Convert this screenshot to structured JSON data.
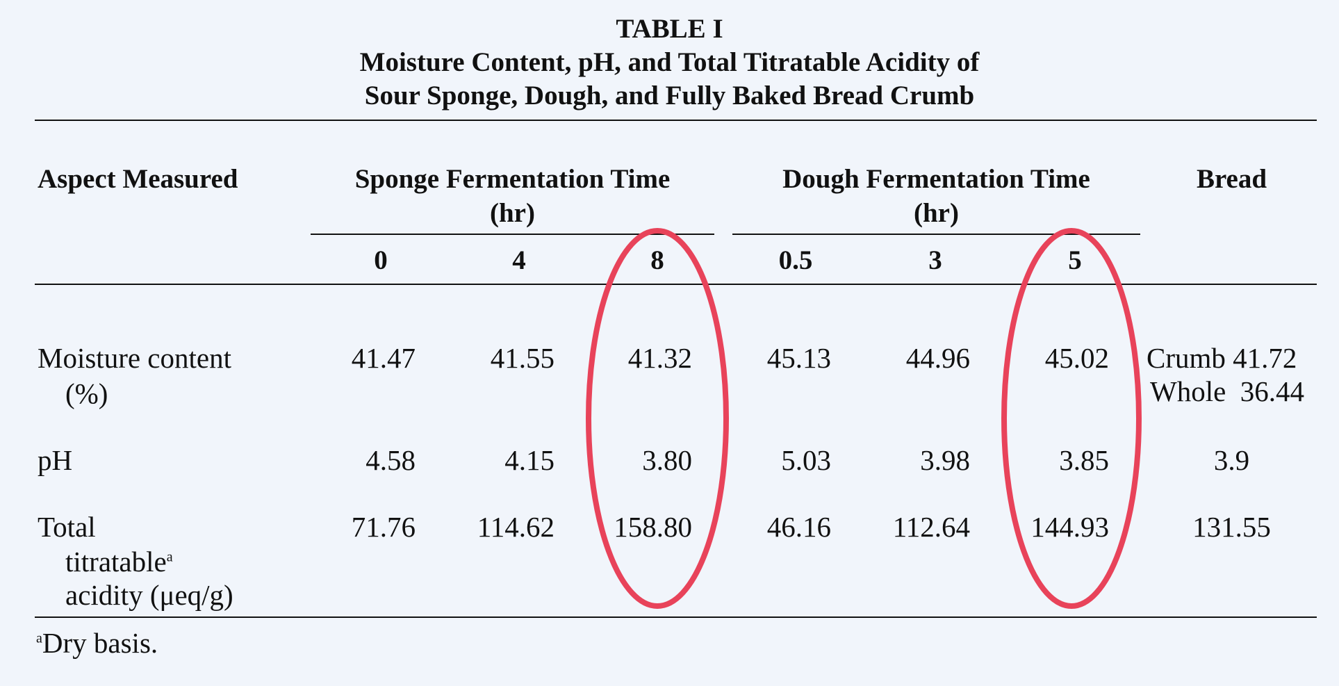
{
  "table": {
    "title": "TABLE I",
    "subtitle_line1": "Moisture Content, pH, and Total Titratable Acidity of",
    "subtitle_line2": "Sour Sponge, Dough, and Fully Baked Bread Crumb",
    "headers": {
      "aspect": "Aspect Measured",
      "sponge_line1": "Sponge Fermentation Time",
      "sponge_line2": "(hr)",
      "dough_line1": "Dough Fermentation Time",
      "dough_line2": "(hr)",
      "bread": "Bread",
      "sponge_times": [
        "0",
        "4",
        "8"
      ],
      "dough_times": [
        "0.5",
        "3",
        "5"
      ]
    },
    "rows": [
      {
        "label_line1": "Moisture content",
        "label_line2": "(%)",
        "label_line3": "",
        "values": [
          "41.47",
          "41.55",
          "41.32",
          "45.13",
          "44.96",
          "45.02"
        ],
        "bread_line1": "Crumb 41.72",
        "bread_line2": "Whole  36.44"
      },
      {
        "label_line1": "pH",
        "label_line2": "",
        "label_line3": "",
        "values": [
          "4.58",
          "4.15",
          "3.80",
          "5.03",
          "3.98",
          "3.85"
        ],
        "bread_line1": "3.9",
        "bread_line2": ""
      },
      {
        "label_line1": "Total",
        "label_line2": "titratable",
        "label_line2_sup": "a",
        "label_line3": "acidity (μeq/g)",
        "values": [
          "71.76",
          "114.62",
          "158.80",
          "46.16",
          "112.64",
          "144.93"
        ],
        "bread_line1": "131.55",
        "bread_line2": ""
      }
    ],
    "footnote_mark": "a",
    "footnote_text": "Dry basis."
  },
  "annotations": {
    "highlight_color": "#e8435a",
    "highlighted_columns": [
      "Sponge 8 hr",
      "Dough 5 hr"
    ]
  }
}
